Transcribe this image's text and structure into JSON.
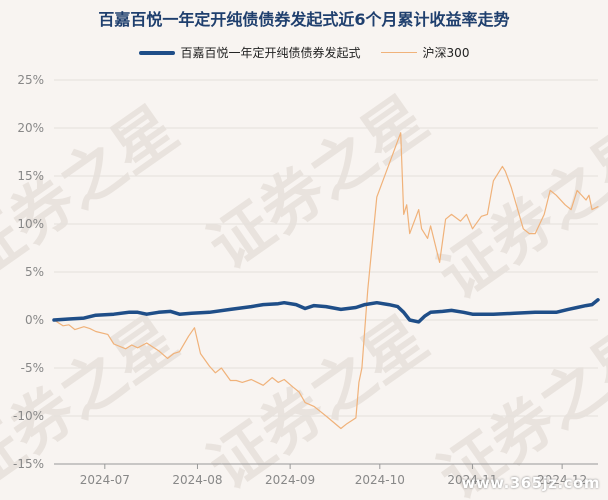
{
  "title": "百嘉百悦一年定开纯债债券发起式近6个月累计收益率走势",
  "legend": {
    "fund": "百嘉百悦一年定开纯债债券发起式",
    "index": "沪深300"
  },
  "watermark": {
    "bg_text": "证券之星",
    "site": "www.365jz.com"
  },
  "colors": {
    "fund": "#1f4e88",
    "index": "#f0b27a",
    "grid": "#e5e0dc",
    "title": "#1f3f6e"
  },
  "chart_data": {
    "type": "line",
    "title": "百嘉百悦一年定开纯债债券发起式近6个月累计收益率走势",
    "xlabel": "",
    "ylabel": "",
    "ylim": [
      -15,
      25
    ],
    "yticks": [
      25,
      20,
      15,
      10,
      5,
      0,
      -5,
      -10,
      -15
    ],
    "ytick_labels": [
      "25%",
      "20%",
      "15%",
      "10%",
      "5%",
      "0%",
      "-5%",
      "-10%",
      "-15%"
    ],
    "xlim": [
      "2024-06-14",
      "2024-12-13"
    ],
    "xticks": [
      "2024-07",
      "2024-08",
      "2024-09",
      "2024-10",
      "2024-11",
      "2024-12"
    ],
    "grid": "horizontal",
    "legend_position": "top",
    "series": [
      {
        "name": "百嘉百悦一年定开纯债债券发起式",
        "points": [
          [
            "2024-06-14",
            0.0
          ],
          [
            "2024-06-19",
            0.1
          ],
          [
            "2024-06-24",
            0.2
          ],
          [
            "2024-06-28",
            0.5
          ],
          [
            "2024-07-04",
            0.6
          ],
          [
            "2024-07-09",
            0.8
          ],
          [
            "2024-07-12",
            0.8
          ],
          [
            "2024-07-15",
            0.6
          ],
          [
            "2024-07-19",
            0.8
          ],
          [
            "2024-07-23",
            0.9
          ],
          [
            "2024-07-26",
            0.6
          ],
          [
            "2024-07-30",
            0.7
          ],
          [
            "2024-08-05",
            0.8
          ],
          [
            "2024-08-12",
            1.1
          ],
          [
            "2024-08-19",
            1.4
          ],
          [
            "2024-08-23",
            1.6
          ],
          [
            "2024-08-28",
            1.7
          ],
          [
            "2024-08-30",
            1.8
          ],
          [
            "2024-09-03",
            1.6
          ],
          [
            "2024-09-06",
            1.2
          ],
          [
            "2024-09-09",
            1.5
          ],
          [
            "2024-09-13",
            1.4
          ],
          [
            "2024-09-18",
            1.1
          ],
          [
            "2024-09-23",
            1.3
          ],
          [
            "2024-09-26",
            1.6
          ],
          [
            "2024-09-30",
            1.8
          ],
          [
            "2024-10-04",
            1.6
          ],
          [
            "2024-10-07",
            1.4
          ],
          [
            "2024-10-09",
            0.8
          ],
          [
            "2024-10-11",
            0.0
          ],
          [
            "2024-10-14",
            -0.2
          ],
          [
            "2024-10-16",
            0.4
          ],
          [
            "2024-10-18",
            0.8
          ],
          [
            "2024-10-22",
            0.9
          ],
          [
            "2024-10-25",
            1.0
          ],
          [
            "2024-10-29",
            0.8
          ],
          [
            "2024-11-01",
            0.6
          ],
          [
            "2024-11-08",
            0.6
          ],
          [
            "2024-11-15",
            0.7
          ],
          [
            "2024-11-22",
            0.8
          ],
          [
            "2024-11-29",
            0.8
          ],
          [
            "2024-12-03",
            1.1
          ],
          [
            "2024-12-06",
            1.3
          ],
          [
            "2024-12-09",
            1.5
          ],
          [
            "2024-12-11",
            1.6
          ],
          [
            "2024-12-13",
            2.1
          ]
        ]
      },
      {
        "name": "沪深300",
        "points": [
          [
            "2024-06-14",
            0.0
          ],
          [
            "2024-06-17",
            -0.6
          ],
          [
            "2024-06-19",
            -0.5
          ],
          [
            "2024-06-21",
            -1.0
          ],
          [
            "2024-06-24",
            -0.7
          ],
          [
            "2024-06-26",
            -0.9
          ],
          [
            "2024-06-28",
            -1.2
          ],
          [
            "2024-07-02",
            -1.5
          ],
          [
            "2024-07-04",
            -2.5
          ],
          [
            "2024-07-08",
            -3.0
          ],
          [
            "2024-07-10",
            -2.6
          ],
          [
            "2024-07-12",
            -2.9
          ],
          [
            "2024-07-15",
            -2.4
          ],
          [
            "2024-07-17",
            -2.8
          ],
          [
            "2024-07-19",
            -3.2
          ],
          [
            "2024-07-22",
            -4.0
          ],
          [
            "2024-07-24",
            -3.5
          ],
          [
            "2024-07-26",
            -3.3
          ],
          [
            "2024-07-29",
            -1.7
          ],
          [
            "2024-07-31",
            -0.8
          ],
          [
            "2024-08-02",
            -3.5
          ],
          [
            "2024-08-05",
            -4.8
          ],
          [
            "2024-08-07",
            -5.5
          ],
          [
            "2024-08-09",
            -5.0
          ],
          [
            "2024-08-12",
            -6.3
          ],
          [
            "2024-08-14",
            -6.3
          ],
          [
            "2024-08-16",
            -6.5
          ],
          [
            "2024-08-19",
            -6.2
          ],
          [
            "2024-08-21",
            -6.5
          ],
          [
            "2024-08-23",
            -6.8
          ],
          [
            "2024-08-26",
            -6.0
          ],
          [
            "2024-08-28",
            -6.5
          ],
          [
            "2024-08-30",
            -6.2
          ],
          [
            "2024-09-02",
            -7.0
          ],
          [
            "2024-09-04",
            -7.5
          ],
          [
            "2024-09-06",
            -8.6
          ],
          [
            "2024-09-09",
            -9.0
          ],
          [
            "2024-09-11",
            -9.5
          ],
          [
            "2024-09-13",
            -10.0
          ],
          [
            "2024-09-18",
            -11.3
          ],
          [
            "2024-09-20",
            -10.8
          ],
          [
            "2024-09-23",
            -10.2
          ],
          [
            "2024-09-24",
            -6.5
          ],
          [
            "2024-09-25",
            -5.0
          ],
          [
            "2024-09-26",
            -0.8
          ],
          [
            "2024-09-27",
            3.2
          ],
          [
            "2024-09-30",
            12.8
          ],
          [
            "2024-10-08",
            19.5
          ],
          [
            "2024-10-09",
            11.0
          ],
          [
            "2024-10-10",
            12.0
          ],
          [
            "2024-10-11",
            9.0
          ],
          [
            "2024-10-14",
            11.5
          ],
          [
            "2024-10-15",
            9.5
          ],
          [
            "2024-10-17",
            8.5
          ],
          [
            "2024-10-18",
            9.8
          ],
          [
            "2024-10-21",
            6.0
          ],
          [
            "2024-10-23",
            10.5
          ],
          [
            "2024-10-25",
            11.0
          ],
          [
            "2024-10-28",
            10.3
          ],
          [
            "2024-10-30",
            11.0
          ],
          [
            "2024-11-01",
            9.5
          ],
          [
            "2024-11-04",
            10.8
          ],
          [
            "2024-11-06",
            11.0
          ],
          [
            "2024-11-08",
            14.5
          ],
          [
            "2024-11-11",
            16.0
          ],
          [
            "2024-11-12",
            15.5
          ],
          [
            "2024-11-14",
            13.8
          ],
          [
            "2024-11-18",
            9.5
          ],
          [
            "2024-11-20",
            9.0
          ],
          [
            "2024-11-22",
            9.0
          ],
          [
            "2024-11-25",
            11.0
          ],
          [
            "2024-11-27",
            13.5
          ],
          [
            "2024-11-29",
            13.0
          ],
          [
            "2024-12-02",
            12.0
          ],
          [
            "2024-12-04",
            11.5
          ],
          [
            "2024-12-06",
            13.5
          ],
          [
            "2024-12-09",
            12.5
          ],
          [
            "2024-12-10",
            13.0
          ],
          [
            "2024-12-11",
            11.5
          ],
          [
            "2024-12-13",
            11.8
          ]
        ]
      }
    ]
  }
}
